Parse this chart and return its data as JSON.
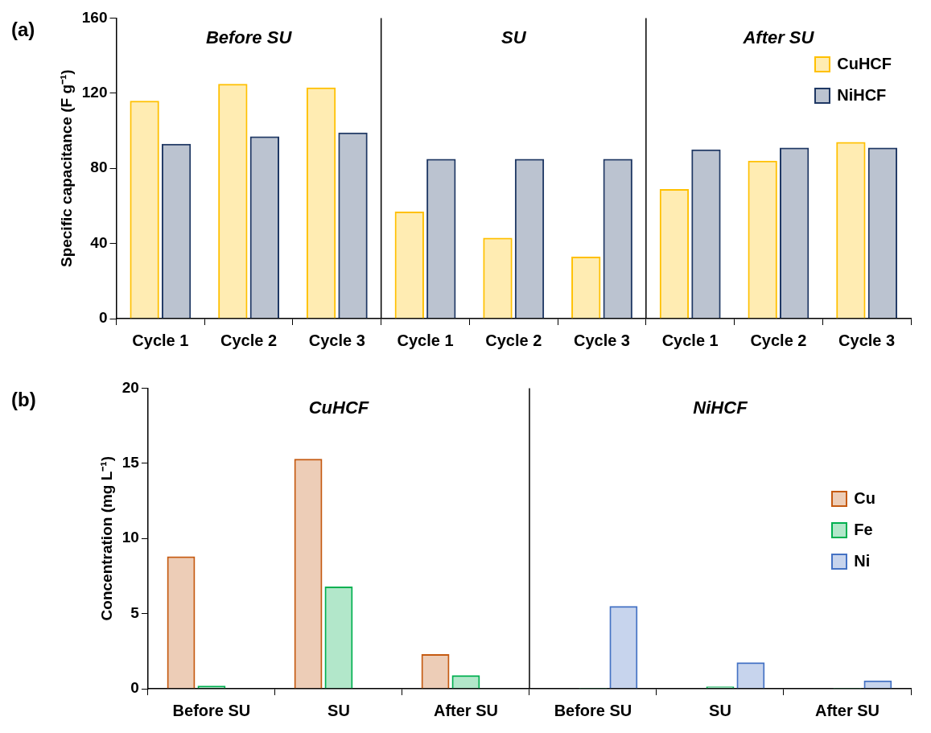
{
  "chart_data": [
    {
      "type": "bar",
      "title": "(a)",
      "ylabel": "Specific capacitance (F g⁻¹)",
      "categories": [
        "Cycle 1",
        "Cycle 2",
        "Cycle 3",
        "Cycle 1",
        "Cycle 2",
        "Cycle 3",
        "Cycle 1",
        "Cycle 2",
        "Cycle 3"
      ],
      "series": [
        {
          "name": "CuHCF",
          "color": "#ffc000",
          "values": [
            116,
            125,
            123,
            57,
            43,
            33,
            69,
            84,
            94
          ]
        },
        {
          "name": "NiHCF",
          "color": "#1f3864",
          "values": [
            93,
            97,
            99,
            85,
            85,
            85,
            90,
            91,
            91
          ]
        }
      ],
      "ylim": [
        0,
        160
      ],
      "yticks": [
        0,
        40,
        80,
        120,
        160
      ],
      "legend": "top right",
      "grid": false,
      "annotations": [
        "Before SU",
        "SU",
        "After SU"
      ]
    },
    {
      "type": "bar",
      "title": "(b)",
      "ylabel": "Concentration (mg L⁻¹)",
      "categories": [
        "Before SU",
        "SU",
        "After SU",
        "Before SU",
        "SU",
        "After SU"
      ],
      "series": [
        {
          "name": "Cu",
          "color": "#c55a11",
          "values": [
            8.8,
            15.3,
            2.3,
            null,
            null,
            null
          ]
        },
        {
          "name": "Fe",
          "color": "#00b050",
          "values": [
            0.2,
            6.8,
            0.9,
            0.05,
            0.15,
            0.05
          ]
        },
        {
          "name": "Ni",
          "color": "#4472c4",
          "values": [
            null,
            null,
            null,
            5.5,
            1.75,
            0.55
          ]
        }
      ],
      "ylim": [
        0,
        20
      ],
      "yticks": [
        0,
        5,
        10,
        15,
        20
      ],
      "legend": "right",
      "grid": false,
      "annotations": [
        "CuHCF",
        "NiHCF"
      ]
    }
  ]
}
